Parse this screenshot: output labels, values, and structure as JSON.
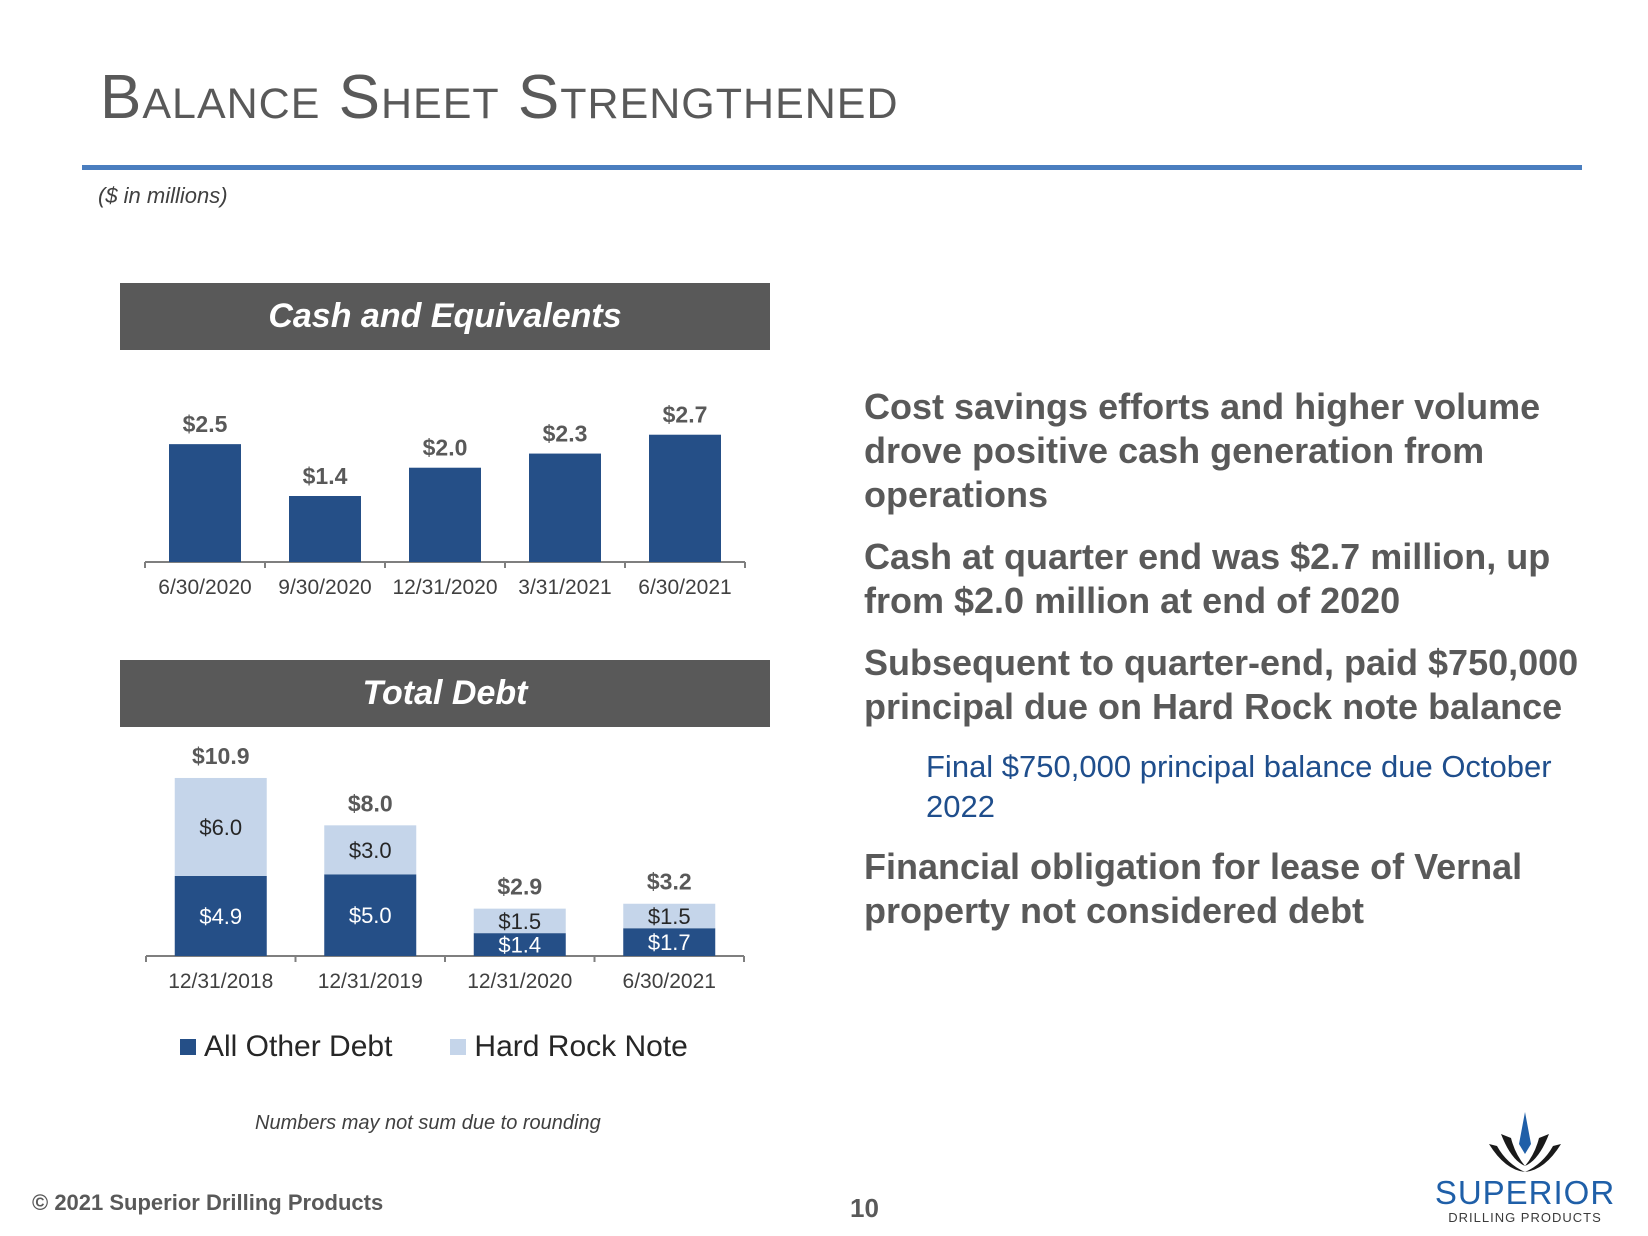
{
  "title": "Balance Sheet Strengthened",
  "units_note": "($ in millions)",
  "colors": {
    "primary": "#254f87",
    "light": "#c5d5ea",
    "banner": "#595959",
    "accent": "#4a7ebf"
  },
  "cash_banner": "Cash and Equivalents",
  "debt_banner": "Total Debt",
  "chart_data": [
    {
      "type": "bar",
      "title": "Cash and Equivalents",
      "categories": [
        "6/30/2020",
        "9/30/2020",
        "12/31/2020",
        "3/31/2021",
        "6/30/2021"
      ],
      "values": [
        2.5,
        1.4,
        2.0,
        2.3,
        2.7
      ],
      "value_labels": [
        "$2.5",
        "$1.4",
        "$2.0",
        "$2.3",
        "$2.7"
      ],
      "ylim": [
        0,
        3.5
      ],
      "grid": false
    },
    {
      "type": "bar",
      "stacked": true,
      "title": "Total Debt",
      "categories": [
        "12/31/2018",
        "12/31/2019",
        "12/31/2020",
        "6/30/2021"
      ],
      "series": [
        {
          "name": "All Other Debt",
          "values": [
            4.9,
            5.0,
            1.4,
            1.7
          ],
          "labels": [
            "$4.9",
            "$5.0",
            "$1.4",
            "$1.7"
          ]
        },
        {
          "name": "Hard Rock Note",
          "values": [
            6.0,
            3.0,
            1.5,
            1.5
          ],
          "labels": [
            "$6.0",
            "$3.0",
            "$1.5",
            "$1.5"
          ]
        }
      ],
      "totals": [
        10.9,
        8.0,
        2.9,
        3.2
      ],
      "total_labels": [
        "$10.9",
        "$8.0",
        "$2.9",
        "$3.2"
      ],
      "ylim": [
        0,
        12
      ],
      "legend_position": "bottom",
      "grid": false
    }
  ],
  "legend": {
    "other": "All Other Debt",
    "hard_rock": "Hard Rock Note"
  },
  "footnote": "Numbers may not sum due to rounding",
  "bullets": [
    "Cost savings efforts and higher volume drove positive cash generation from operations",
    "Cash at quarter end was $2.7 million, up from $2.0 million at end of 2020",
    "Subsequent to quarter-end, paid $750,000 principal due on Hard Rock note balance"
  ],
  "sub_bullet": "Final $750,000 principal balance due October 2022",
  "bullet_last": "Financial obligation for lease of Vernal property not considered debt",
  "copyright": "© 2021 Superior Drilling Products",
  "page_number": "10",
  "logo": {
    "word": "SUPERIOR",
    "sub": "DRILLING PRODUCTS"
  }
}
